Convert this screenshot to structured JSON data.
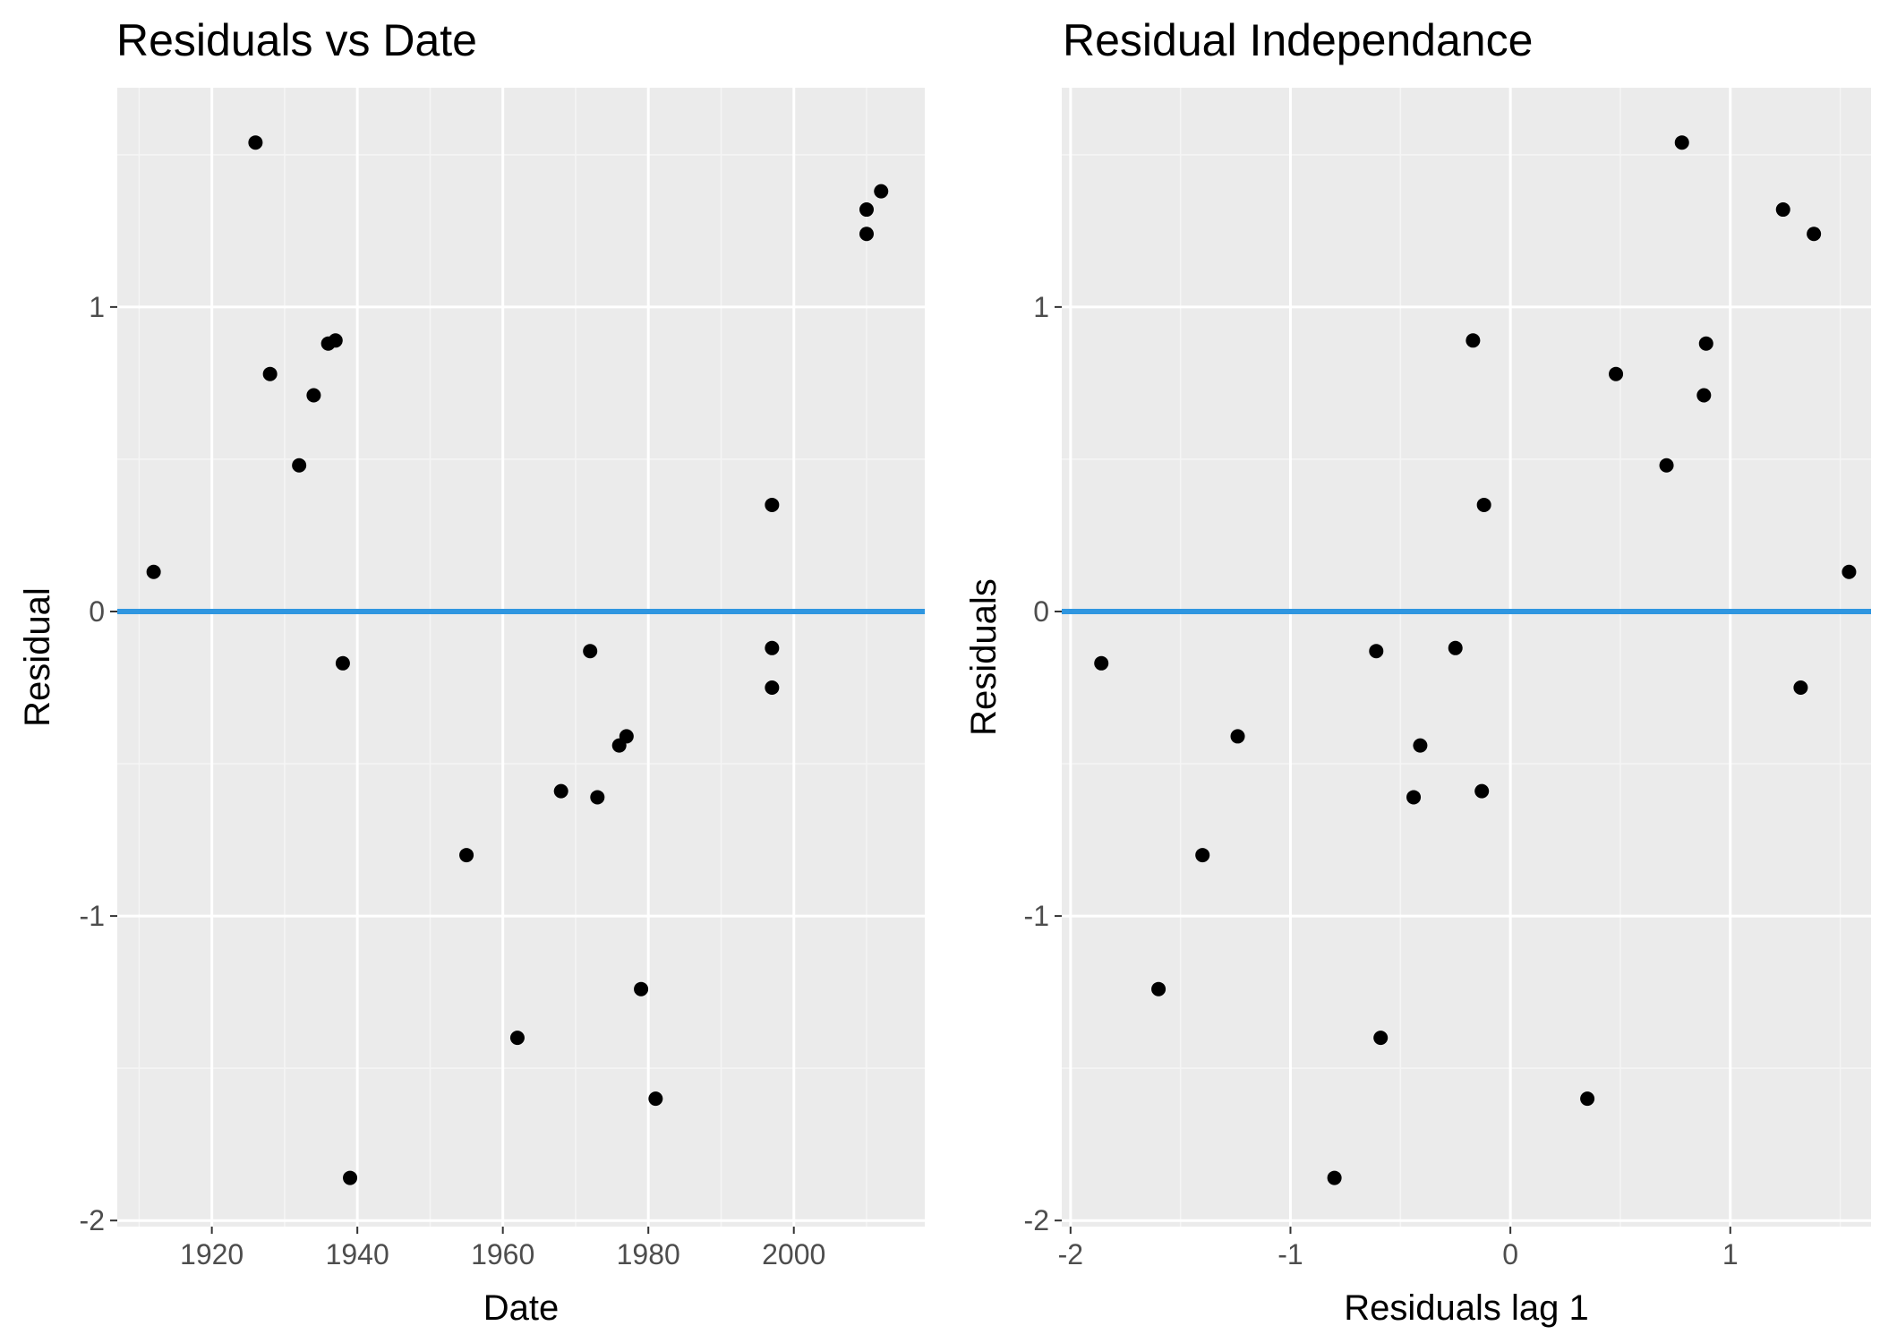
{
  "colors": {
    "panel_background": "#ebebeb",
    "grid_major": "#ffffff",
    "grid_minor": "#f5f5f5",
    "point": "#000000",
    "reference_line": "#2f96e0",
    "tick_label": "#4d4d4d"
  },
  "chart_data": [
    {
      "type": "scatter",
      "title": "Residuals vs Date",
      "xlabel": "Date",
      "ylabel": "Residual",
      "xlim": [
        1907,
        2018
      ],
      "ylim": [
        -2.02,
        1.72
      ],
      "xticks": [
        1920,
        1940,
        1960,
        1980,
        2000
      ],
      "yticks": [
        -2,
        -1,
        0,
        1
      ],
      "xtick_labels": [
        "1920",
        "1940",
        "1960",
        "1980",
        "2000"
      ],
      "ytick_labels": [
        "-2",
        "-1",
        "0",
        "1"
      ],
      "grid": true,
      "reference_line": {
        "orientation": "horizontal",
        "y": 0
      },
      "points": [
        {
          "x": 1912,
          "y": 0.13
        },
        {
          "x": 1926,
          "y": 1.54
        },
        {
          "x": 1928,
          "y": 0.78
        },
        {
          "x": 1932,
          "y": 0.48
        },
        {
          "x": 1934,
          "y": 0.71
        },
        {
          "x": 1936,
          "y": 0.88
        },
        {
          "x": 1937,
          "y": 0.89
        },
        {
          "x": 1938,
          "y": -0.17
        },
        {
          "x": 1939,
          "y": -1.86
        },
        {
          "x": 1955,
          "y": -0.8
        },
        {
          "x": 1962,
          "y": -1.4
        },
        {
          "x": 1968,
          "y": -0.59
        },
        {
          "x": 1972,
          "y": -0.13
        },
        {
          "x": 1973,
          "y": -0.61
        },
        {
          "x": 1976,
          "y": -0.44
        },
        {
          "x": 1977,
          "y": -0.41
        },
        {
          "x": 1979,
          "y": -1.24
        },
        {
          "x": 1981,
          "y": -1.6
        },
        {
          "x": 1997,
          "y": 0.35
        },
        {
          "x": 1997,
          "y": -0.12
        },
        {
          "x": 1997,
          "y": -0.25
        },
        {
          "x": 2010,
          "y": 1.32
        },
        {
          "x": 2010,
          "y": 1.24
        },
        {
          "x": 2012,
          "y": 1.38
        }
      ]
    },
    {
      "type": "scatter",
      "title": "Residual Independance",
      "xlabel": "Residuals lag 1",
      "ylabel": "Residuals",
      "xlim": [
        -2.04,
        1.64
      ],
      "ylim": [
        -2.02,
        1.72
      ],
      "xticks": [
        -2,
        -1,
        0,
        1
      ],
      "yticks": [
        -2,
        -1,
        0,
        1
      ],
      "xtick_labels": [
        "-2",
        "-1",
        "0",
        "1"
      ],
      "ytick_labels": [
        "-2",
        "-1",
        "0",
        "1"
      ],
      "grid": true,
      "reference_line": {
        "orientation": "horizontal",
        "y": 0
      },
      "points": [
        {
          "x": -1.86,
          "y": -0.17
        },
        {
          "x": -1.6,
          "y": -1.24
        },
        {
          "x": -1.4,
          "y": -0.8
        },
        {
          "x": -1.24,
          "y": -0.41
        },
        {
          "x": -0.8,
          "y": -1.86
        },
        {
          "x": -0.61,
          "y": -0.13
        },
        {
          "x": -0.59,
          "y": -1.4
        },
        {
          "x": -0.44,
          "y": -0.61
        },
        {
          "x": -0.41,
          "y": -0.44
        },
        {
          "x": -0.25,
          "y": -0.12
        },
        {
          "x": -0.17,
          "y": 0.89
        },
        {
          "x": -0.13,
          "y": -0.59
        },
        {
          "x": -0.12,
          "y": 0.35
        },
        {
          "x": 0.35,
          "y": -1.6
        },
        {
          "x": 0.48,
          "y": 0.78
        },
        {
          "x": 0.71,
          "y": 0.48
        },
        {
          "x": 0.78,
          "y": 1.54
        },
        {
          "x": 0.88,
          "y": 0.71
        },
        {
          "x": 0.89,
          "y": 0.88
        },
        {
          "x": 1.24,
          "y": 1.32
        },
        {
          "x": 1.32,
          "y": -0.25
        },
        {
          "x": 1.38,
          "y": 1.24
        },
        {
          "x": 1.54,
          "y": 0.13
        }
      ]
    }
  ]
}
